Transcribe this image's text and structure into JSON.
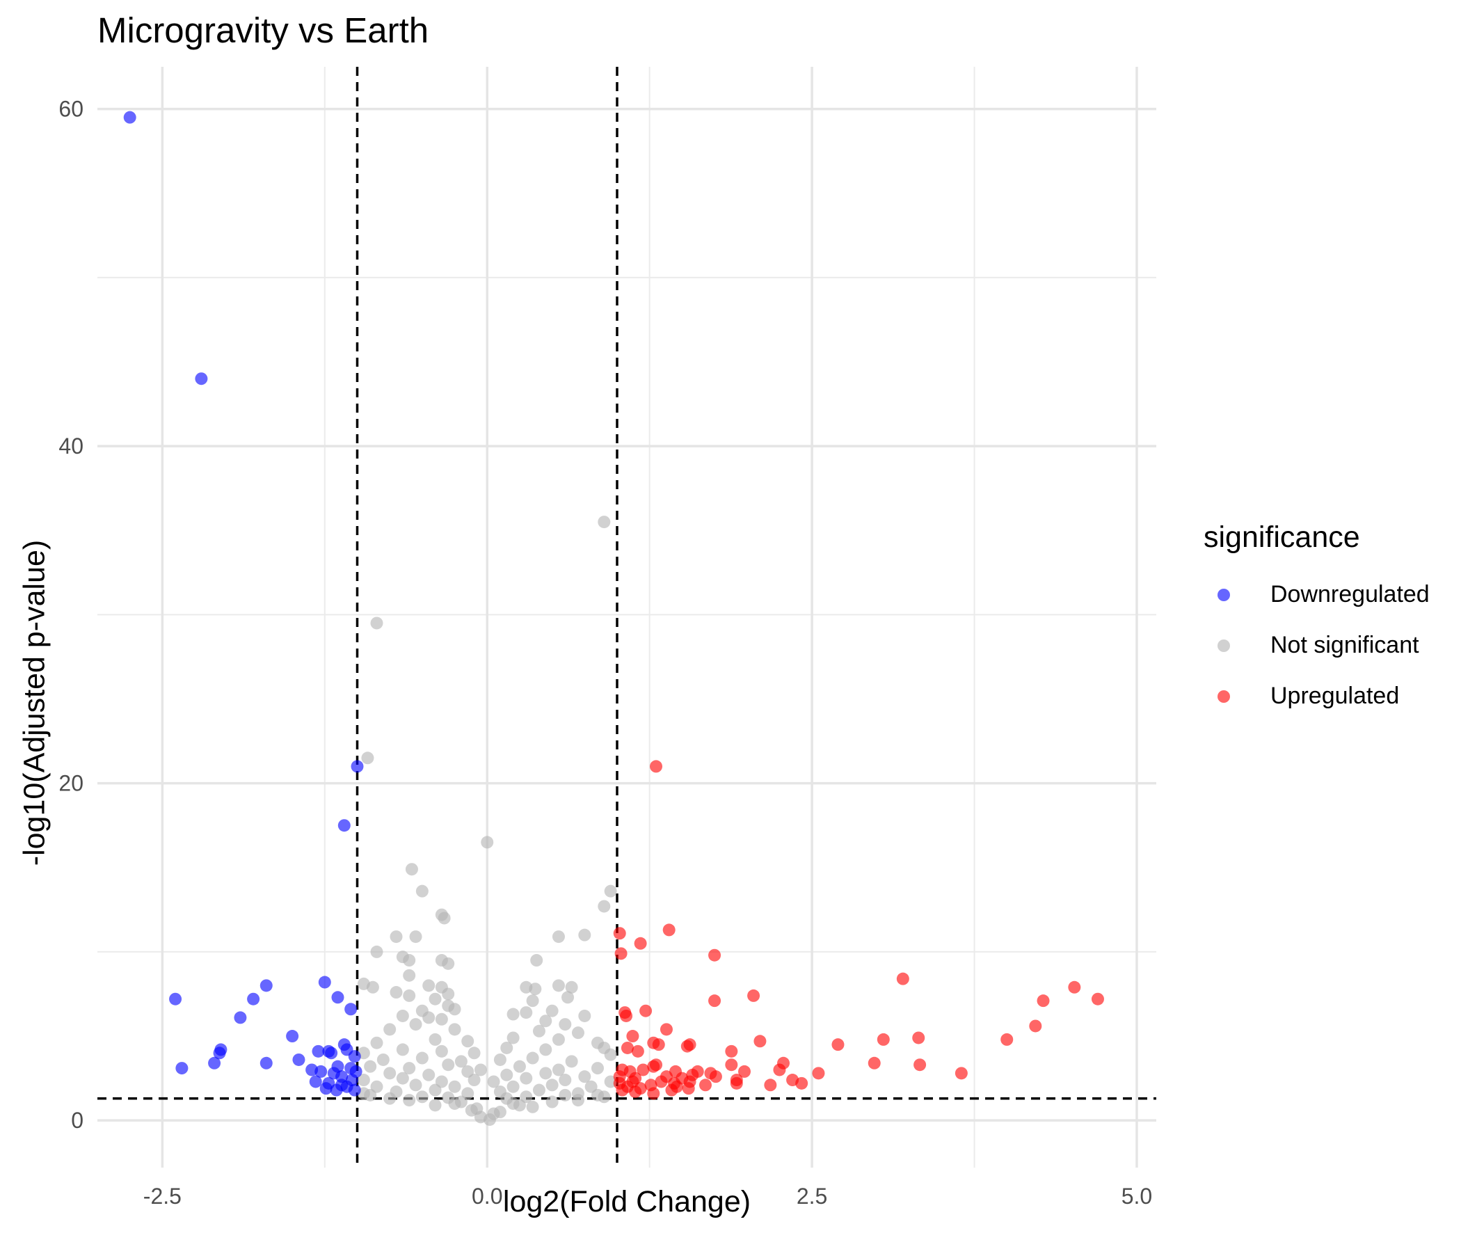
{
  "chart_data": {
    "type": "scatter",
    "title": "Microgravity vs Earth",
    "xlabel": "log2(Fold Change)",
    "ylabel": "-log10(Adjusted p-value)",
    "xlim": [
      -3.0,
      5.15
    ],
    "ylim": [
      -2.8,
      62.5
    ],
    "xticks": [
      -2.5,
      0.0,
      2.5,
      5.0
    ],
    "xtick_labels": [
      "-2.5",
      "0.0",
      "2.5",
      "5.0"
    ],
    "yticks": [
      0,
      20,
      40,
      60
    ],
    "ytick_labels": [
      "0",
      "20",
      "40",
      "60"
    ],
    "grid": true,
    "thresholds": {
      "log2fc": [
        -1,
        1
      ],
      "neg_log10_padj": 1.3
    },
    "legend": {
      "title": "significance",
      "position": "right"
    },
    "series": [
      {
        "name": "Downregulated",
        "color": "#0000FF",
        "points": [
          [
            -2.75,
            59.5
          ],
          [
            -2.2,
            44.0
          ],
          [
            -1.0,
            21.0
          ],
          [
            -1.1,
            17.5
          ],
          [
            -2.4,
            7.2
          ],
          [
            -1.8,
            7.2
          ],
          [
            -1.7,
            8.0
          ],
          [
            -1.25,
            8.2
          ],
          [
            -1.15,
            7.3
          ],
          [
            -1.05,
            6.6
          ],
          [
            -1.9,
            6.1
          ],
          [
            -1.5,
            5.0
          ],
          [
            -2.05,
            4.2
          ],
          [
            -2.06,
            4.0
          ],
          [
            -1.3,
            4.1
          ],
          [
            -1.22,
            4.1
          ],
          [
            -1.1,
            4.5
          ],
          [
            -1.08,
            4.2
          ],
          [
            -1.2,
            4.0
          ],
          [
            -1.02,
            3.8
          ],
          [
            -1.45,
            3.6
          ],
          [
            -2.1,
            3.4
          ],
          [
            -2.35,
            3.1
          ],
          [
            -1.35,
            3.0
          ],
          [
            -1.7,
            3.4
          ],
          [
            -1.15,
            3.2
          ],
          [
            -1.05,
            3.1
          ],
          [
            -1.28,
            2.9
          ],
          [
            -1.18,
            2.8
          ],
          [
            -1.01,
            2.9
          ],
          [
            -1.12,
            2.6
          ],
          [
            -1.32,
            2.3
          ],
          [
            -1.22,
            2.2
          ],
          [
            -1.12,
            2.1
          ],
          [
            -1.04,
            2.4
          ],
          [
            -1.24,
            1.9
          ],
          [
            -1.08,
            2.0
          ],
          [
            -1.02,
            1.8
          ],
          [
            -1.16,
            1.8
          ]
        ]
      },
      {
        "name": "Not significant",
        "color": "#B3B3B3",
        "points": [
          [
            0.9,
            35.5
          ],
          [
            -0.85,
            29.5
          ],
          [
            -0.92,
            21.5
          ],
          [
            0.0,
            16.5
          ],
          [
            -0.58,
            14.9
          ],
          [
            -0.5,
            13.6
          ],
          [
            0.95,
            13.6
          ],
          [
            0.9,
            12.7
          ],
          [
            -0.35,
            12.2
          ],
          [
            -0.33,
            12.0
          ],
          [
            0.55,
            10.9
          ],
          [
            0.75,
            11.0
          ],
          [
            -0.7,
            10.9
          ],
          [
            -0.55,
            10.9
          ],
          [
            -0.85,
            10.0
          ],
          [
            -0.65,
            9.7
          ],
          [
            -0.35,
            9.5
          ],
          [
            -0.6,
            9.5
          ],
          [
            -0.3,
            9.3
          ],
          [
            0.38,
            9.5
          ],
          [
            -0.95,
            8.1
          ],
          [
            -0.88,
            7.9
          ],
          [
            -0.45,
            8.0
          ],
          [
            -0.35,
            7.9
          ],
          [
            -0.6,
            8.6
          ],
          [
            0.3,
            7.9
          ],
          [
            0.55,
            8.0
          ],
          [
            0.65,
            7.9
          ],
          [
            0.37,
            7.8
          ],
          [
            -0.3,
            7.5
          ],
          [
            -0.7,
            7.6
          ],
          [
            -0.6,
            7.4
          ],
          [
            -0.4,
            7.2
          ],
          [
            0.35,
            7.1
          ],
          [
            0.62,
            7.3
          ],
          [
            -0.25,
            6.6
          ],
          [
            -0.3,
            6.8
          ],
          [
            -0.5,
            6.5
          ],
          [
            -0.65,
            6.2
          ],
          [
            0.3,
            6.4
          ],
          [
            0.5,
            6.5
          ],
          [
            0.75,
            6.2
          ],
          [
            -0.45,
            6.1
          ],
          [
            -0.35,
            6.0
          ],
          [
            -0.55,
            5.7
          ],
          [
            0.2,
            6.3
          ],
          [
            0.45,
            5.9
          ],
          [
            0.6,
            5.7
          ],
          [
            -0.75,
            5.4
          ],
          [
            -0.25,
            5.4
          ],
          [
            0.4,
            5.3
          ],
          [
            0.7,
            5.2
          ],
          [
            -0.85,
            4.6
          ],
          [
            -0.4,
            4.8
          ],
          [
            -0.15,
            4.7
          ],
          [
            0.2,
            4.9
          ],
          [
            0.55,
            4.8
          ],
          [
            0.85,
            4.6
          ],
          [
            -0.95,
            4.0
          ],
          [
            -0.65,
            4.2
          ],
          [
            -0.35,
            4.1
          ],
          [
            -0.1,
            4.0
          ],
          [
            0.15,
            4.3
          ],
          [
            0.45,
            4.2
          ],
          [
            0.9,
            4.3
          ],
          [
            0.95,
            3.9
          ],
          [
            -0.8,
            3.6
          ],
          [
            -0.5,
            3.7
          ],
          [
            -0.2,
            3.5
          ],
          [
            0.1,
            3.6
          ],
          [
            0.35,
            3.7
          ],
          [
            0.65,
            3.5
          ],
          [
            -0.9,
            3.2
          ],
          [
            -0.6,
            3.1
          ],
          [
            -0.3,
            3.3
          ],
          [
            -0.05,
            3.0
          ],
          [
            0.25,
            3.2
          ],
          [
            0.55,
            3.0
          ],
          [
            0.85,
            3.1
          ],
          [
            -0.75,
            2.8
          ],
          [
            -0.45,
            2.7
          ],
          [
            -0.15,
            2.9
          ],
          [
            0.15,
            2.7
          ],
          [
            0.45,
            2.8
          ],
          [
            0.75,
            2.6
          ],
          [
            -0.95,
            2.4
          ],
          [
            -0.65,
            2.5
          ],
          [
            -0.35,
            2.3
          ],
          [
            -0.1,
            2.4
          ],
          [
            0.05,
            2.3
          ],
          [
            0.3,
            2.5
          ],
          [
            0.6,
            2.4
          ],
          [
            0.95,
            2.3
          ],
          [
            -0.85,
            2.0
          ],
          [
            -0.55,
            2.1
          ],
          [
            -0.25,
            2.0
          ],
          [
            0.2,
            2.0
          ],
          [
            0.5,
            2.1
          ],
          [
            0.8,
            2.0
          ],
          [
            -0.7,
            1.7
          ],
          [
            -0.4,
            1.8
          ],
          [
            -0.15,
            1.6
          ],
          [
            0.1,
            1.7
          ],
          [
            0.4,
            1.8
          ],
          [
            0.7,
            1.6
          ],
          [
            -0.9,
            1.5
          ],
          [
            -0.5,
            1.4
          ],
          [
            0.3,
            1.4
          ],
          [
            0.6,
            1.5
          ],
          [
            0.9,
            1.4
          ],
          [
            -0.3,
            1.35
          ],
          [
            0.15,
            1.3
          ],
          [
            -0.6,
            1.2
          ],
          [
            -0.2,
            1.1
          ],
          [
            0.2,
            1.0
          ],
          [
            0.5,
            1.1
          ],
          [
            -0.4,
            0.9
          ],
          [
            0.35,
            0.8
          ],
          [
            -0.12,
            0.6
          ],
          [
            0.1,
            0.5
          ],
          [
            -0.05,
            0.2
          ],
          [
            0.02,
            0.05
          ],
          [
            0.05,
            0.4
          ],
          [
            -0.08,
            0.7
          ],
          [
            0.25,
            0.9
          ],
          [
            -0.25,
            1.0
          ],
          [
            0.7,
            1.2
          ],
          [
            -0.75,
            1.3
          ],
          [
            0.85,
            1.5
          ],
          [
            -0.95,
            1.6
          ]
        ]
      },
      {
        "name": "Upregulated",
        "color": "#FF0000",
        "points": [
          [
            1.3,
            21.0
          ],
          [
            1.02,
            11.1
          ],
          [
            1.18,
            10.5
          ],
          [
            1.4,
            11.3
          ],
          [
            1.03,
            9.9
          ],
          [
            1.75,
            9.8
          ],
          [
            3.2,
            8.4
          ],
          [
            4.52,
            7.9
          ],
          [
            4.7,
            7.2
          ],
          [
            4.28,
            7.1
          ],
          [
            2.05,
            7.4
          ],
          [
            1.75,
            7.1
          ],
          [
            1.06,
            6.4
          ],
          [
            1.22,
            6.5
          ],
          [
            1.07,
            6.2
          ],
          [
            4.22,
            5.6
          ],
          [
            1.38,
            5.4
          ],
          [
            1.12,
            5.0
          ],
          [
            3.32,
            4.9
          ],
          [
            3.05,
            4.8
          ],
          [
            4.0,
            4.8
          ],
          [
            2.1,
            4.7
          ],
          [
            2.7,
            4.5
          ],
          [
            1.56,
            4.5
          ],
          [
            1.28,
            4.6
          ],
          [
            1.32,
            4.5
          ],
          [
            1.54,
            4.4
          ],
          [
            1.08,
            4.3
          ],
          [
            1.16,
            4.1
          ],
          [
            1.88,
            4.1
          ],
          [
            2.98,
            3.4
          ],
          [
            3.33,
            3.3
          ],
          [
            2.28,
            3.4
          ],
          [
            1.88,
            3.3
          ],
          [
            1.3,
            3.3
          ],
          [
            1.28,
            3.2
          ],
          [
            1.04,
            3.0
          ],
          [
            1.1,
            2.9
          ],
          [
            1.2,
            3.0
          ],
          [
            1.45,
            2.9
          ],
          [
            1.62,
            2.9
          ],
          [
            1.72,
            2.8
          ],
          [
            1.98,
            2.9
          ],
          [
            2.25,
            3.0
          ],
          [
            3.65,
            2.8
          ],
          [
            2.55,
            2.8
          ],
          [
            1.02,
            2.6
          ],
          [
            1.14,
            2.5
          ],
          [
            1.38,
            2.6
          ],
          [
            1.5,
            2.5
          ],
          [
            1.58,
            2.7
          ],
          [
            1.76,
            2.6
          ],
          [
            1.92,
            2.4
          ],
          [
            2.35,
            2.4
          ],
          [
            1.02,
            2.2
          ],
          [
            1.12,
            2.3
          ],
          [
            1.26,
            2.1
          ],
          [
            1.34,
            2.3
          ],
          [
            1.44,
            2.2
          ],
          [
            1.56,
            2.3
          ],
          [
            1.68,
            2.1
          ],
          [
            1.92,
            2.2
          ],
          [
            2.18,
            2.1
          ],
          [
            2.42,
            2.2
          ],
          [
            1.08,
            2.0
          ],
          [
            1.18,
            1.9
          ],
          [
            1.46,
            2.0
          ],
          [
            1.04,
            1.8
          ],
          [
            1.14,
            1.7
          ],
          [
            1.28,
            1.6
          ],
          [
            1.42,
            1.8
          ],
          [
            1.55,
            1.9
          ]
        ]
      }
    ]
  }
}
